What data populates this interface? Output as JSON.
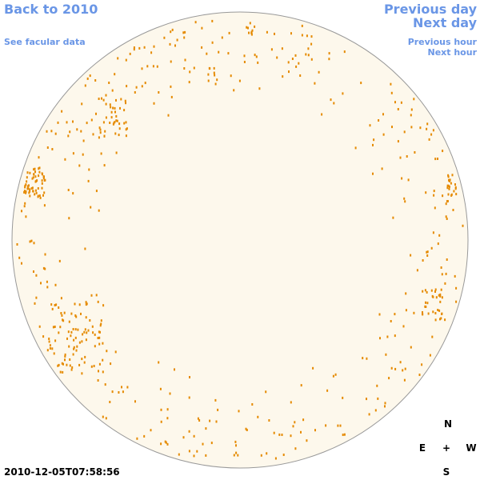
{
  "links": {
    "back": "Back to 2010",
    "facular": "See facular data",
    "previous_day": "Previous day",
    "next_day": "Next day",
    "previous_hour": "Previous hour",
    "next_hour": "Next hour"
  },
  "compass": {
    "north": "N",
    "east": "E",
    "center": "+",
    "west": "W",
    "south": "S"
  },
  "timestamp": "2010-12-05T07:58:56"
}
